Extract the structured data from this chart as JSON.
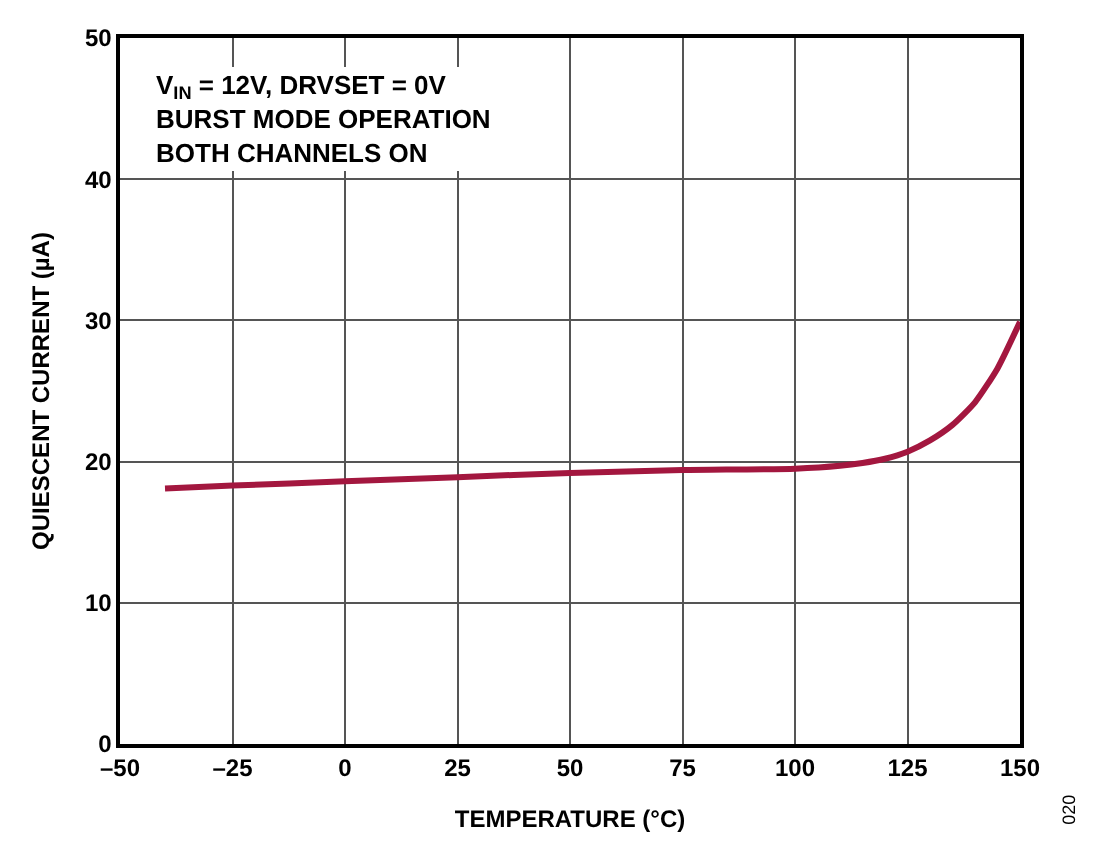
{
  "chart_data": {
    "type": "line",
    "xlabel": "TEMPERATURE (°C)",
    "ylabel": "QUIESCENT CURRENT (µA)",
    "x": [
      -40,
      -25,
      0,
      25,
      50,
      75,
      100,
      110,
      115,
      120,
      125,
      130,
      135,
      140,
      145,
      150
    ],
    "series": [
      {
        "color": "#a3173f",
        "values": [
          18.1,
          18.3,
          18.6,
          18.9,
          19.2,
          19.4,
          19.5,
          19.7,
          19.9,
          20.2,
          20.7,
          21.5,
          22.6,
          24.2,
          26.6,
          29.9
        ]
      }
    ],
    "xlim": [
      -50,
      150
    ],
    "xticks": [
      {
        "value": -50,
        "label": "–50"
      },
      {
        "value": -25,
        "label": "–25"
      },
      0,
      25,
      50,
      75,
      100,
      125,
      150
    ],
    "ylim": [
      0,
      50
    ],
    "yticks": [
      0,
      10,
      20,
      30,
      40,
      50
    ],
    "grid": true,
    "legend": false,
    "line_style": "solid",
    "marker": "none",
    "annotations": [
      "V$_{IN}$ = 12V, DRVSET = 0V\nBURST MODE OPERATION\nBOTH CHANNELS ON",
      "020"
    ]
  }
}
